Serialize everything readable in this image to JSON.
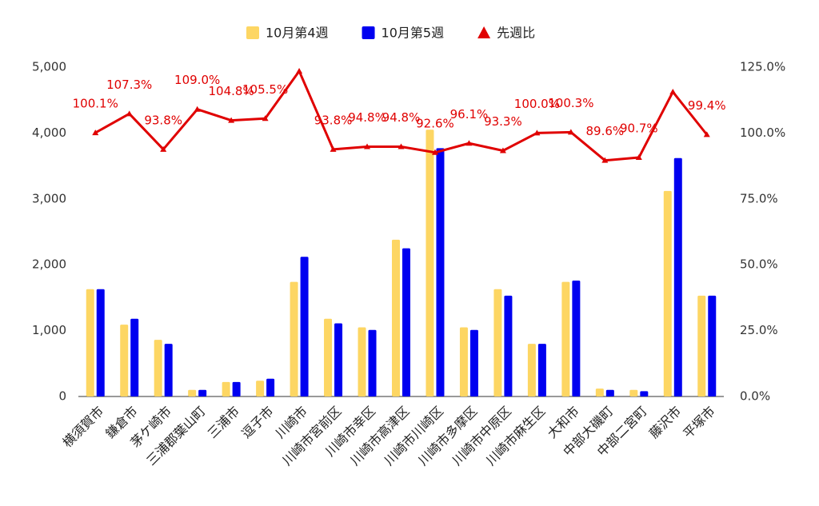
{
  "chart_data": {
    "type": "bar-line",
    "categories": [
      "横須賀市",
      "鎌倉市",
      "茅ケ崎市",
      "三浦郡葉山町",
      "三浦市",
      "逗子市",
      "川崎市",
      "川崎市宮前区",
      "川崎市幸区",
      "川崎市高津区",
      "川崎市川崎区",
      "川崎市多摩区",
      "川崎市中原区",
      "川崎市麻生区",
      "大和市",
      "中部大磯町",
      "中部二宮町",
      "藤沢市",
      "平塚市"
    ],
    "series": [
      {
        "name": "10月第4週",
        "type": "bar",
        "color": "#fdd663",
        "values": [
          1630,
          1090,
          860,
          100,
          220,
          240,
          1740,
          1180,
          1050,
          2380,
          4050,
          1050,
          1630,
          800,
          1740,
          120,
          100,
          3120,
          1530
        ]
      },
      {
        "name": "10月第5週",
        "type": "bar",
        "color": "#0000f0",
        "values": [
          1630,
          1180,
          800,
          100,
          220,
          270,
          2120,
          1110,
          1010,
          2250,
          3770,
          1010,
          1530,
          800,
          1760,
          100,
          80,
          3620,
          1530
        ]
      },
      {
        "name": "先週比",
        "type": "line",
        "axis": "y2",
        "color": "#e00000",
        "values": [
          100.1,
          107.3,
          93.8,
          109.0,
          104.8,
          105.5,
          123.5,
          93.8,
          94.8,
          94.8,
          92.6,
          96.1,
          93.3,
          100.0,
          100.3,
          89.6,
          90.7,
          115.6,
          99.4
        ],
        "value_labels": [
          "100.1%",
          "107.3%",
          "93.8%",
          "109.0%",
          "104.8%",
          "105.5%",
          null,
          "93.8%",
          "94.8%",
          "94.8%",
          "92.6%",
          "96.1%",
          "93.3%",
          "100.0%",
          "100.3%",
          "89.6%",
          "90.7%",
          null,
          "99.4%"
        ]
      }
    ],
    "ylim": [
      0,
      5000
    ],
    "yticks": [
      0,
      {
        "value": 1000,
        "label": "1,000"
      },
      {
        "value": 2000,
        "label": "2,000"
      },
      {
        "value": 3000,
        "label": "3,000"
      },
      {
        "value": 4000,
        "label": "4,000"
      },
      {
        "value": 5000,
        "label": "5,000"
      }
    ],
    "y2lim": [
      0,
      125
    ],
    "y2ticks": [
      {
        "value": 0,
        "label": "0.0%"
      },
      {
        "value": 25,
        "label": "25.0%"
      },
      {
        "value": 50,
        "label": "50.0%"
      },
      {
        "value": 75,
        "label": "75.0%"
      },
      {
        "value": 100,
        "label": "100.0%"
      },
      {
        "value": 125,
        "label": "125.0%"
      }
    ],
    "grid": false,
    "legend": "top"
  }
}
